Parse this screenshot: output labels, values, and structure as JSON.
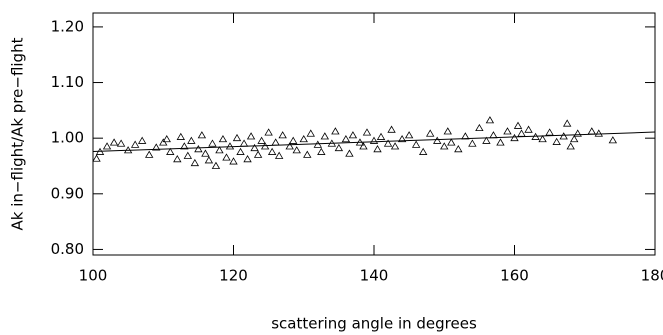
{
  "chart_data": {
    "type": "scatter",
    "xlabel": "scattering angle in degrees",
    "ylabel": "Ak in−flight/Ak pre−flight",
    "xlim": [
      100,
      180
    ],
    "ylim": [
      0.79,
      1.225
    ],
    "xticks": [
      100,
      120,
      140,
      160,
      180
    ],
    "yticks": [
      {
        "value": 0.8,
        "label": "0.80"
      },
      {
        "value": 0.9,
        "label": "0.90"
      },
      {
        "value": 1.0,
        "label": "1.00"
      },
      {
        "value": 1.1,
        "label": "1.10"
      },
      {
        "value": 1.2,
        "label": "1.20"
      }
    ],
    "series": [
      {
        "color": "#000000",
        "marker": "triangle",
        "x": [
          100.5,
          101,
          102,
          103,
          104,
          105,
          106,
          107,
          108,
          109,
          110,
          110.5,
          111,
          112,
          112.5,
          113,
          113.5,
          114,
          114.5,
          115,
          115.5,
          116,
          116.5,
          117,
          117.5,
          118,
          118.5,
          119,
          119.5,
          120,
          120.5,
          121,
          121.5,
          122,
          122.5,
          123,
          123.5,
          124,
          124.5,
          125,
          125.5,
          126,
          126.5,
          127,
          128,
          128.5,
          129,
          130,
          130.5,
          131,
          132,
          132.5,
          133,
          134,
          134.5,
          135,
          136,
          136.5,
          137,
          138,
          138.5,
          139,
          140,
          140.5,
          141,
          142,
          142.5,
          143,
          144,
          145,
          146,
          147,
          148,
          149,
          150,
          150.5,
          151,
          152,
          153,
          154,
          155,
          156,
          156.5,
          157,
          158,
          159,
          160,
          160.5,
          161,
          162,
          163,
          164,
          165,
          166,
          167,
          167.5,
          168,
          168.5,
          169,
          171,
          172,
          174
        ],
        "values": [
          0.963,
          0.975,
          0.985,
          0.992,
          0.99,
          0.978,
          0.988,
          0.995,
          0.97,
          0.983,
          0.992,
          0.998,
          0.975,
          0.962,
          1.002,
          0.985,
          0.968,
          0.995,
          0.955,
          0.98,
          1.005,
          0.972,
          0.96,
          0.99,
          0.95,
          0.978,
          0.998,
          0.965,
          0.985,
          0.958,
          1.0,
          0.975,
          0.99,
          0.962,
          1.003,
          0.982,
          0.97,
          0.995,
          0.985,
          1.01,
          0.975,
          0.992,
          0.968,
          1.005,
          0.985,
          0.995,
          0.978,
          0.998,
          0.97,
          1.008,
          0.988,
          0.975,
          1.003,
          0.99,
          1.012,
          0.982,
          0.998,
          0.972,
          1.005,
          0.992,
          0.985,
          1.01,
          0.995,
          0.98,
          1.002,
          0.99,
          1.015,
          0.985,
          0.998,
          1.005,
          0.988,
          0.975,
          1.008,
          0.995,
          0.985,
          1.012,
          0.992,
          0.98,
          1.003,
          0.99,
          1.018,
          0.995,
          1.032,
          1.005,
          0.992,
          1.012,
          1.0,
          1.022,
          1.008,
          1.015,
          1.002,
          0.998,
          1.01,
          0.993,
          1.003,
          1.026,
          0.985,
          0.998,
          1.008,
          1.012,
          1.008,
          0.996
        ]
      },
      {
        "color": "#000000",
        "marker": "line",
        "x": [
          100,
          180
        ],
        "values": [
          0.976,
          1.011
        ]
      }
    ]
  }
}
